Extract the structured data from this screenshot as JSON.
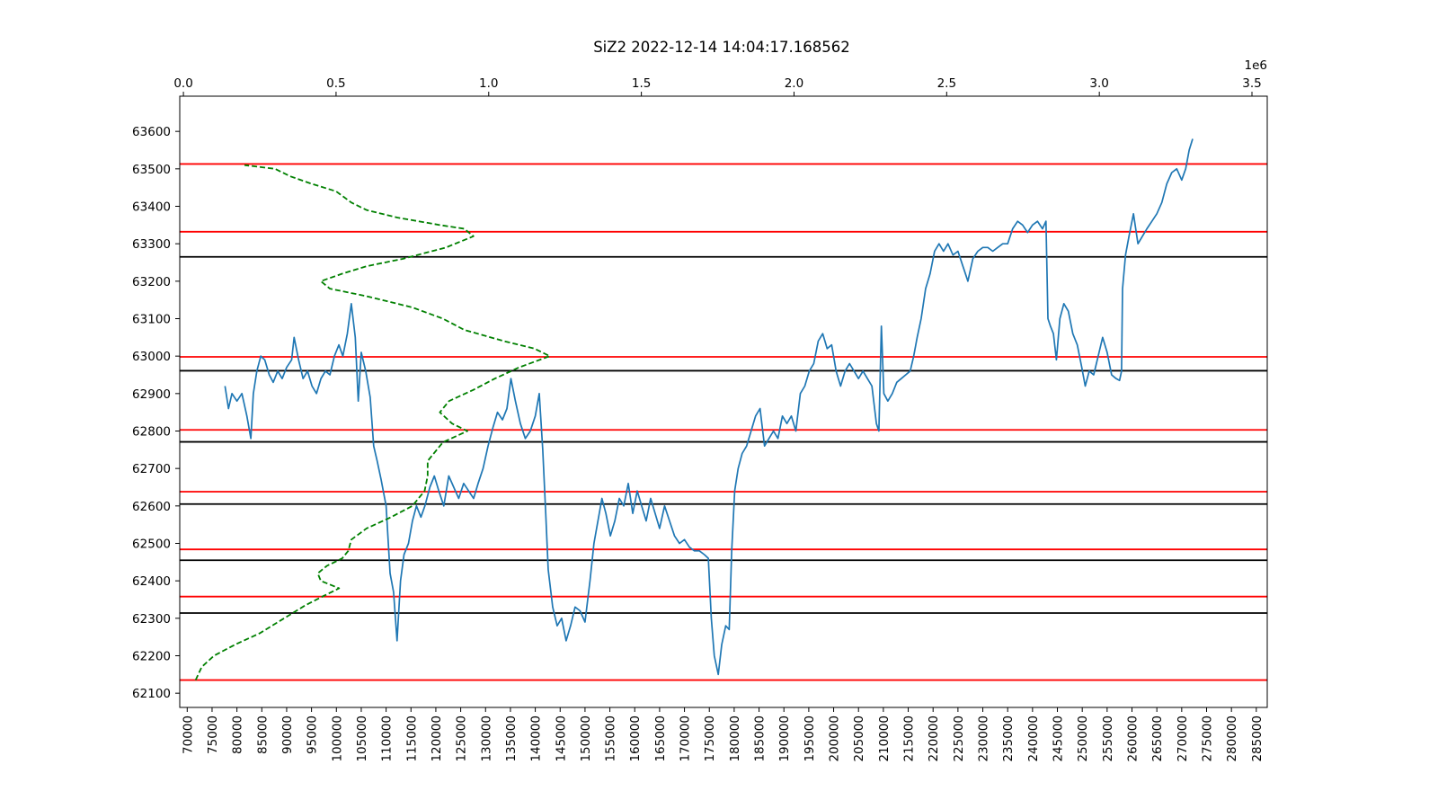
{
  "chart_data": {
    "type": "line",
    "title": "SiZ2 2022-12-14 14:04:17.168562",
    "top_axis_offset_label": "1e6",
    "xlim": [
      68500,
      287200
    ],
    "ylim": [
      62062,
      63694
    ],
    "top_xlim": [
      -0.012,
      3.55
    ],
    "x_ticks": [
      70000,
      75000,
      80000,
      85000,
      90000,
      95000,
      100000,
      105000,
      110000,
      115000,
      120000,
      125000,
      130000,
      135000,
      140000,
      145000,
      150000,
      155000,
      160000,
      165000,
      170000,
      175000,
      180000,
      185000,
      190000,
      195000,
      200000,
      205000,
      210000,
      215000,
      220000,
      225000,
      230000,
      235000,
      240000,
      245000,
      250000,
      255000,
      260000,
      265000,
      270000,
      275000,
      280000,
      285000
    ],
    "y_ticks": [
      62100,
      62200,
      62300,
      62400,
      62500,
      62600,
      62700,
      62800,
      62900,
      63000,
      63100,
      63200,
      63300,
      63400,
      63500,
      63600
    ],
    "top_x_ticks": [
      "0.0",
      "0.5",
      "1.0",
      "1.5",
      "2.0",
      "2.5",
      "3.0",
      "3.5"
    ],
    "top_x_tick_values": [
      0.0,
      0.5,
      1.0,
      1.5,
      2.0,
      2.5,
      3.0,
      3.5
    ],
    "grid": false,
    "series": [
      {
        "color": "#1f77b4",
        "style": "solid",
        "axis": "bottom",
        "points": [
          [
            77600,
            62920
          ],
          [
            78300,
            62860
          ],
          [
            79000,
            62900
          ],
          [
            80000,
            62880
          ],
          [
            81000,
            62900
          ],
          [
            82000,
            62840
          ],
          [
            82800,
            62780
          ],
          [
            83300,
            62900
          ],
          [
            84000,
            62960
          ],
          [
            84800,
            63000
          ],
          [
            85600,
            62990
          ],
          [
            86500,
            62950
          ],
          [
            87300,
            62930
          ],
          [
            88200,
            62960
          ],
          [
            89100,
            62940
          ],
          [
            90000,
            62970
          ],
          [
            91000,
            62990
          ],
          [
            91500,
            63050
          ],
          [
            92400,
            62990
          ],
          [
            93300,
            62940
          ],
          [
            94200,
            62960
          ],
          [
            95100,
            62920
          ],
          [
            96000,
            62900
          ],
          [
            96900,
            62940
          ],
          [
            97800,
            62960
          ],
          [
            98700,
            62950
          ],
          [
            99600,
            63000
          ],
          [
            100500,
            63030
          ],
          [
            101300,
            63000
          ],
          [
            102200,
            63060
          ],
          [
            103000,
            63140
          ],
          [
            103800,
            63050
          ],
          [
            104400,
            62880
          ],
          [
            105000,
            63010
          ],
          [
            105900,
            62960
          ],
          [
            106800,
            62890
          ],
          [
            107500,
            62760
          ],
          [
            108200,
            62720
          ],
          [
            109000,
            62670
          ],
          [
            110000,
            62600
          ],
          [
            110800,
            62420
          ],
          [
            111500,
            62370
          ],
          [
            112200,
            62240
          ],
          [
            112900,
            62400
          ],
          [
            113600,
            62470
          ],
          [
            114500,
            62500
          ],
          [
            115300,
            62560
          ],
          [
            116100,
            62600
          ],
          [
            117000,
            62570
          ],
          [
            117800,
            62600
          ],
          [
            118800,
            62650
          ],
          [
            119700,
            62680
          ],
          [
            120600,
            62640
          ],
          [
            121600,
            62600
          ],
          [
            122600,
            62680
          ],
          [
            123600,
            62650
          ],
          [
            124600,
            62620
          ],
          [
            125600,
            62660
          ],
          [
            126600,
            62640
          ],
          [
            127600,
            62620
          ],
          [
            128500,
            62660
          ],
          [
            129500,
            62700
          ],
          [
            130500,
            62760
          ],
          [
            131500,
            62810
          ],
          [
            132400,
            62850
          ],
          [
            133400,
            62830
          ],
          [
            134300,
            62860
          ],
          [
            135100,
            62940
          ],
          [
            136000,
            62880
          ],
          [
            137000,
            62820
          ],
          [
            138000,
            62780
          ],
          [
            139000,
            62800
          ],
          [
            140000,
            62840
          ],
          [
            140800,
            62900
          ],
          [
            141500,
            62750
          ],
          [
            142100,
            62580
          ],
          [
            142600,
            62430
          ],
          [
            143500,
            62330
          ],
          [
            144400,
            62280
          ],
          [
            145300,
            62300
          ],
          [
            146200,
            62240
          ],
          [
            147100,
            62280
          ],
          [
            148000,
            62330
          ],
          [
            149000,
            62320
          ],
          [
            150000,
            62290
          ],
          [
            151000,
            62400
          ],
          [
            151800,
            62500
          ],
          [
            152600,
            62560
          ],
          [
            153400,
            62620
          ],
          [
            154200,
            62580
          ],
          [
            155100,
            62520
          ],
          [
            156000,
            62560
          ],
          [
            156900,
            62620
          ],
          [
            157800,
            62600
          ],
          [
            158700,
            62660
          ],
          [
            159600,
            62580
          ],
          [
            160500,
            62640
          ],
          [
            161400,
            62600
          ],
          [
            162300,
            62560
          ],
          [
            163200,
            62620
          ],
          [
            164100,
            62580
          ],
          [
            165000,
            62540
          ],
          [
            166000,
            62600
          ],
          [
            167000,
            62560
          ],
          [
            168000,
            62520
          ],
          [
            169000,
            62500
          ],
          [
            170000,
            62510
          ],
          [
            171000,
            62490
          ],
          [
            172000,
            62480
          ],
          [
            173000,
            62480
          ],
          [
            174000,
            62470
          ],
          [
            174800,
            62460
          ],
          [
            175400,
            62300
          ],
          [
            176000,
            62200
          ],
          [
            176800,
            62150
          ],
          [
            177500,
            62230
          ],
          [
            178300,
            62280
          ],
          [
            179000,
            62270
          ],
          [
            179500,
            62480
          ],
          [
            180100,
            62640
          ],
          [
            180800,
            62700
          ],
          [
            181600,
            62740
          ],
          [
            182500,
            62760
          ],
          [
            183400,
            62800
          ],
          [
            184300,
            62840
          ],
          [
            185200,
            62860
          ],
          [
            186100,
            62760
          ],
          [
            187000,
            62780
          ],
          [
            187900,
            62800
          ],
          [
            188800,
            62780
          ],
          [
            189700,
            62840
          ],
          [
            190600,
            62820
          ],
          [
            191500,
            62840
          ],
          [
            192400,
            62800
          ],
          [
            193300,
            62900
          ],
          [
            194200,
            62920
          ],
          [
            195100,
            62960
          ],
          [
            196000,
            62980
          ],
          [
            196900,
            63040
          ],
          [
            197800,
            63060
          ],
          [
            198700,
            63020
          ],
          [
            199600,
            63030
          ],
          [
            200500,
            62960
          ],
          [
            201400,
            62920
          ],
          [
            202300,
            62960
          ],
          [
            203200,
            62980
          ],
          [
            204100,
            62960
          ],
          [
            205000,
            62940
          ],
          [
            205900,
            62960
          ],
          [
            206800,
            62940
          ],
          [
            207700,
            62920
          ],
          [
            208600,
            62820
          ],
          [
            209100,
            62800
          ],
          [
            209600,
            63080
          ],
          [
            210100,
            62900
          ],
          [
            210900,
            62880
          ],
          [
            211800,
            62900
          ],
          [
            212700,
            62930
          ],
          [
            213600,
            62940
          ],
          [
            214500,
            62950
          ],
          [
            215400,
            62960
          ],
          [
            216100,
            63000
          ],
          [
            216800,
            63050
          ],
          [
            217600,
            63100
          ],
          [
            218500,
            63180
          ],
          [
            219400,
            63220
          ],
          [
            220300,
            63280
          ],
          [
            221200,
            63300
          ],
          [
            222100,
            63280
          ],
          [
            223000,
            63300
          ],
          [
            224000,
            63270
          ],
          [
            225000,
            63280
          ],
          [
            226000,
            63240
          ],
          [
            227000,
            63200
          ],
          [
            228000,
            63260
          ],
          [
            229000,
            63280
          ],
          [
            230000,
            63290
          ],
          [
            231000,
            63290
          ],
          [
            232000,
            63280
          ],
          [
            233000,
            63290
          ],
          [
            234000,
            63300
          ],
          [
            235000,
            63300
          ],
          [
            236000,
            63340
          ],
          [
            237000,
            63360
          ],
          [
            238000,
            63350
          ],
          [
            239000,
            63330
          ],
          [
            240000,
            63350
          ],
          [
            241000,
            63360
          ],
          [
            242000,
            63340
          ],
          [
            242700,
            63360
          ],
          [
            243100,
            63100
          ],
          [
            243600,
            63080
          ],
          [
            244200,
            63060
          ],
          [
            244800,
            62990
          ],
          [
            245500,
            63100
          ],
          [
            246300,
            63140
          ],
          [
            247200,
            63120
          ],
          [
            248100,
            63060
          ],
          [
            249000,
            63030
          ],
          [
            249900,
            62970
          ],
          [
            250600,
            62920
          ],
          [
            251400,
            62960
          ],
          [
            252300,
            62950
          ],
          [
            253200,
            63000
          ],
          [
            254100,
            63050
          ],
          [
            255000,
            63010
          ],
          [
            255900,
            62950
          ],
          [
            256800,
            62940
          ],
          [
            257500,
            62935
          ],
          [
            257900,
            62960
          ],
          [
            258100,
            63180
          ],
          [
            258700,
            63270
          ],
          [
            259400,
            63320
          ],
          [
            260300,
            63380
          ],
          [
            261200,
            63300
          ],
          [
            262100,
            63320
          ],
          [
            263000,
            63340
          ],
          [
            264000,
            63360
          ],
          [
            265000,
            63380
          ],
          [
            266000,
            63410
          ],
          [
            267000,
            63460
          ],
          [
            268000,
            63490
          ],
          [
            269000,
            63500
          ],
          [
            270000,
            63470
          ],
          [
            270800,
            63500
          ],
          [
            271500,
            63550
          ],
          [
            272200,
            63580
          ]
        ]
      },
      {
        "color": "#008000",
        "style": "dashed",
        "axis": "top",
        "points": [
          [
            0.04,
            62135
          ],
          [
            0.06,
            62170
          ],
          [
            0.1,
            62200
          ],
          [
            0.17,
            62230
          ],
          [
            0.25,
            62260
          ],
          [
            0.33,
            62300
          ],
          [
            0.4,
            62335
          ],
          [
            0.46,
            62360
          ],
          [
            0.51,
            62380
          ],
          [
            0.48,
            62390
          ],
          [
            0.45,
            62400
          ],
          [
            0.44,
            62420
          ],
          [
            0.47,
            62440
          ],
          [
            0.52,
            62460
          ],
          [
            0.54,
            62480
          ],
          [
            0.55,
            62510
          ],
          [
            0.6,
            62540
          ],
          [
            0.68,
            62570
          ],
          [
            0.75,
            62600
          ],
          [
            0.79,
            62640
          ],
          [
            0.8,
            62680
          ],
          [
            0.8,
            62720
          ],
          [
            0.85,
            62770
          ],
          [
            0.93,
            62800
          ],
          [
            0.88,
            62820
          ],
          [
            0.84,
            62850
          ],
          [
            0.87,
            62880
          ],
          [
            0.95,
            62910
          ],
          [
            1.02,
            62940
          ],
          [
            1.1,
            62970
          ],
          [
            1.2,
            63000
          ],
          [
            1.15,
            63020
          ],
          [
            1.05,
            63040
          ],
          [
            0.92,
            63070
          ],
          [
            0.85,
            63100
          ],
          [
            0.75,
            63130
          ],
          [
            0.6,
            63160
          ],
          [
            0.48,
            63180
          ],
          [
            0.45,
            63200
          ],
          [
            0.52,
            63220
          ],
          [
            0.6,
            63240
          ],
          [
            0.72,
            63260
          ],
          [
            0.86,
            63290
          ],
          [
            0.95,
            63320
          ],
          [
            0.92,
            63340
          ],
          [
            0.84,
            63350
          ],
          [
            0.7,
            63370
          ],
          [
            0.6,
            63390
          ],
          [
            0.55,
            63410
          ],
          [
            0.5,
            63440
          ],
          [
            0.42,
            63460
          ],
          [
            0.35,
            63480
          ],
          [
            0.3,
            63500
          ],
          [
            0.2,
            63510
          ]
        ]
      }
    ],
    "hlines_red": [
      62135,
      62358,
      62484,
      62638,
      62803,
      62998,
      63332,
      63513
    ],
    "hlines_black": [
      62314,
      62455,
      62605,
      62771,
      62961,
      63265
    ],
    "colors": {
      "price_line": "#1f77b4",
      "profile_line": "#008000",
      "level_red": "#ff0000",
      "level_black": "#000000"
    }
  }
}
